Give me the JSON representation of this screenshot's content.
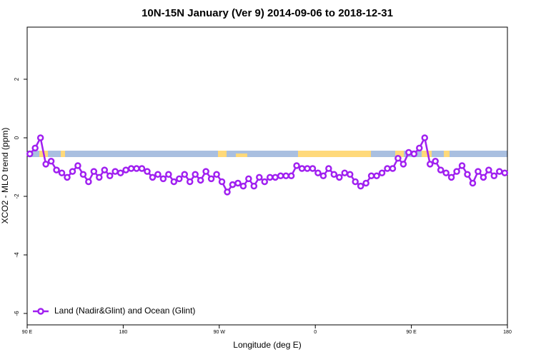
{
  "chart_data": {
    "type": "line",
    "title": "10N-15N January (Ver 9)   2014-09-06 to 2018-12-31",
    "xlabel": "Longitude (deg E)",
    "ylabel": "XCO2 - MLO trend (ppm)",
    "xlim": [
      90,
      540
    ],
    "ylim": [
      -6.39,
      3.78
    ],
    "xticks": [
      {
        "value": 90,
        "label": "90 E"
      },
      {
        "value": 180,
        "label": "180"
      },
      {
        "value": 270,
        "label": "90 W"
      },
      {
        "value": 360,
        "label": "0"
      },
      {
        "value": 450,
        "label": "90 E"
      },
      {
        "value": 540,
        "label": "180"
      }
    ],
    "yticks": [
      2,
      0,
      -2,
      -4,
      -6
    ],
    "legend": "bottom-left",
    "x": [
      92.5,
      97.5,
      102.5,
      107.5,
      112.5,
      117.5,
      122.5,
      127.5,
      132.5,
      137.5,
      142.5,
      147.5,
      152.5,
      157.5,
      162.5,
      167.5,
      172.5,
      177.5,
      182.5,
      187.5,
      192.5,
      197.5,
      202.5,
      207.5,
      212.5,
      217.5,
      222.5,
      227.5,
      232.5,
      237.5,
      242.5,
      247.5,
      252.5,
      257.5,
      262.5,
      267.5,
      272.5,
      277.5,
      282.5,
      287.5,
      292.5,
      297.5,
      302.5,
      307.5,
      312.5,
      317.5,
      322.5,
      327.5,
      332.5,
      337.5,
      342.5,
      347.5,
      352.5,
      357.5,
      362.5,
      367.5,
      372.5,
      377.5,
      382.5,
      387.5,
      392.5,
      397.5,
      402.5,
      407.5,
      412.5,
      417.5,
      422.5,
      427.5,
      432.5,
      437.5,
      442.5,
      447.5,
      452.5,
      457.5,
      462.5,
      467.5,
      472.5,
      477.5,
      482.5,
      487.5,
      492.5,
      497.5,
      502.5,
      507.5,
      512.5,
      517.5,
      522.5,
      527.5,
      532.5,
      537.5
    ],
    "series": [
      {
        "name": "Land (Nadir&Glint) and Ocean (Glint)",
        "color": "#a020f0",
        "values": [
          -0.55,
          -0.35,
          0,
          -0.9,
          -0.8,
          -1.1,
          -1.2,
          -1.35,
          -1.15,
          -0.95,
          -1.25,
          -1.5,
          -1.15,
          -1.35,
          -1.1,
          -1.3,
          -1.15,
          -1.2,
          -1.1,
          -1.05,
          -1.05,
          -1.05,
          -1.15,
          -1.35,
          -1.25,
          -1.4,
          -1.25,
          -1.5,
          -1.4,
          -1.25,
          -1.5,
          -1.25,
          -1.45,
          -1.15,
          -1.4,
          -1.25,
          -1.5,
          -1.85,
          -1.6,
          -1.55,
          -1.65,
          -1.4,
          -1.65,
          -1.35,
          -1.5,
          -1.35,
          -1.35,
          -1.3,
          -1.3,
          -1.3,
          -0.95,
          -1.05,
          -1.05,
          -1.05,
          -1.2,
          -1.3,
          -1.05,
          -1.25,
          -1.35,
          -1.2,
          -1.25,
          -1.5,
          -1.65,
          -1.55,
          -1.3,
          -1.3,
          -1.2,
          -1.05,
          -1.05,
          -0.7,
          -0.9,
          -0.5,
          -0.55,
          -0.35,
          0,
          -0.9,
          -0.8,
          -1.1,
          -1.2,
          -1.35,
          -1.15,
          -0.95,
          -1.25,
          -1.55,
          -1.15,
          -1.35,
          -1.1,
          -1.3,
          -1.15,
          -1.2
        ]
      }
    ]
  }
}
